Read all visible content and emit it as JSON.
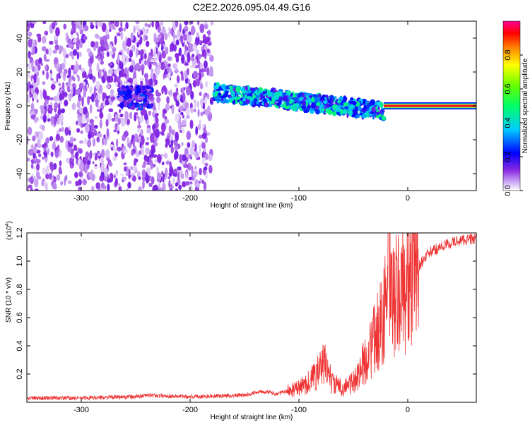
{
  "title": "C2E2.2026.095.04.49.G16",
  "chart_data": [
    {
      "type": "heatmap",
      "xlabel": "Height of straight line (km)",
      "ylabel": "Frequency (Hz)",
      "xlim": [
        -350,
        63
      ],
      "ylim": [
        -50,
        50
      ],
      "xticks": [
        -300,
        -200,
        -100,
        0
      ],
      "xtick_labels": [
        "-300",
        "-200",
        "-100",
        "0"
      ],
      "yticks": [
        -40,
        -20,
        0,
        20,
        40
      ],
      "ytick_labels": [
        "-40",
        "-20",
        "0",
        "20",
        "40"
      ],
      "colorbar": {
        "label": "Normalized spectral amplitude",
        "range": [
          0,
          1
        ],
        "ticks": [
          0.0,
          0.2,
          0.4,
          0.6,
          0.8
        ],
        "tick_labels": [
          "0.0",
          "0.2",
          "0.4",
          "0.6",
          "0.8"
        ]
      },
      "features": [
        {
          "x_start": -350,
          "x_end": -180,
          "freq_spread": 50,
          "amplitude": 0.1,
          "note": "diffuse noise"
        },
        {
          "x_start": -265,
          "x_end": -235,
          "freq_center": 5,
          "freq_spread": 6,
          "amplitude": 0.2
        },
        {
          "x_start": -178,
          "x_end": -22,
          "freq_center_start": 8,
          "freq_center_end": -3,
          "freq_spread": 5,
          "amplitude": 0.35
        },
        {
          "x_start": -22,
          "x_end": 63,
          "freq_center": 0,
          "freq_spread": 1,
          "amplitude": 0.95,
          "note": "narrow line"
        }
      ]
    },
    {
      "type": "line",
      "xlabel": "Height of straight line (km)",
      "ylabel": "SNR (10 * v/v)",
      "y_multiplier_label": "(x10",
      "y_multiplier_exp": "4",
      "xlim": [
        -350,
        63
      ],
      "ylim": [
        0,
        1.2
      ],
      "xticks": [
        -300,
        -200,
        -100,
        0
      ],
      "xtick_labels": [
        "-300",
        "-200",
        "-100",
        "0"
      ],
      "yticks": [
        0.2,
        0.4,
        0.6,
        0.8,
        1.0,
        1.2
      ],
      "ytick_labels": [
        "0.2",
        "0.4",
        "0.6",
        "0.8",
        "1.0",
        "1.2"
      ],
      "series": [
        {
          "name": "SNR",
          "color": "#ee3333",
          "x": [
            -350,
            -300,
            -250,
            -240,
            -200,
            -150,
            -135,
            -120,
            -100,
            -90,
            -80,
            -75,
            -70,
            -60,
            -50,
            -40,
            -30,
            -25,
            -20,
            -18,
            -15,
            -10,
            -5,
            0,
            5,
            10,
            15,
            20,
            30,
            40,
            50,
            63
          ],
          "y": [
            0.03,
            0.03,
            0.04,
            0.05,
            0.04,
            0.05,
            0.08,
            0.06,
            0.1,
            0.15,
            0.24,
            0.28,
            0.14,
            0.1,
            0.14,
            0.28,
            0.45,
            0.55,
            0.7,
            1.0,
            0.7,
            0.75,
            0.8,
            0.85,
            0.9,
            0.96,
            1.02,
            1.06,
            1.1,
            1.13,
            1.15,
            1.16
          ]
        }
      ]
    }
  ]
}
